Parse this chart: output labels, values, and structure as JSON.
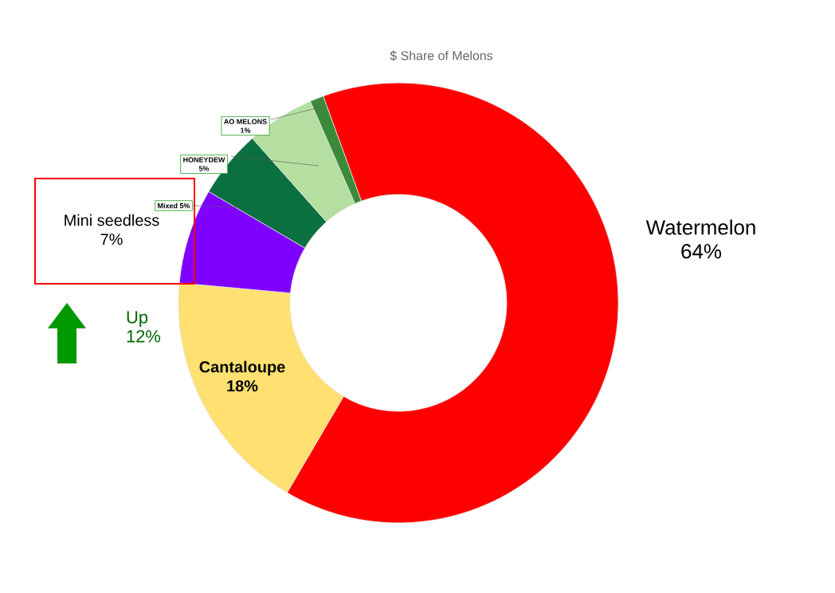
{
  "chart_data": {
    "type": "donut",
    "title": "$ Share of Melons",
    "categories": [
      "Watermelon",
      "Cantaloupe",
      "Mini seedless",
      "Mixed",
      "HONEYDEW",
      "AO MELONS"
    ],
    "values": [
      64,
      18,
      7,
      5,
      5,
      1
    ],
    "value_labels": [
      "64%",
      "18%",
      "7%",
      "5%",
      "5%",
      "1%"
    ],
    "colors": [
      "#ff0000",
      "#ffe070",
      "#7f00ff",
      "#0b7040",
      "#b5dfa0",
      "#3a8a3a"
    ],
    "annotations": [
      "Up 12%"
    ]
  }
}
